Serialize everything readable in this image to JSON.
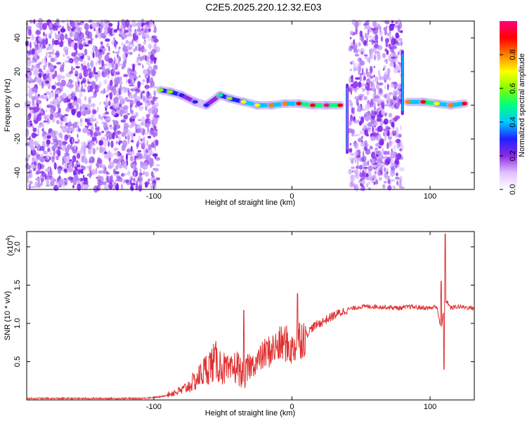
{
  "title": "C2E5.2025.220.12.32.E03",
  "chart_data": [
    {
      "type": "heatmap",
      "xlabel": "Height of straight line (km)",
      "ylabel": "Frequency (Hz)",
      "xlim": [
        -192,
        132
      ],
      "ylim": [
        -50,
        50
      ],
      "x_ticks": [
        "-100",
        "0",
        "100"
      ],
      "y_ticks": [
        "40",
        "20",
        "0",
        "-20",
        "-40"
      ],
      "colorbar": {
        "label": "Normalized spectral amplitude",
        "range": [
          0.0,
          1.0
        ],
        "ticks": [
          "0.0",
          "0.2",
          "0.4",
          "0.6",
          "0.8"
        ],
        "colormap": [
          "#ffffff",
          "#e0c0ff",
          "#8a2be2",
          "#2020ff",
          "#00c8ff",
          "#00ff80",
          "#80ff00",
          "#ffff00",
          "#ff8000",
          "#ff0000",
          "#ff0080"
        ]
      },
      "noise_regions": [
        {
          "x": [
            -192,
            -97
          ],
          "y": [
            -50,
            50
          ]
        },
        {
          "x": [
            42,
            80
          ],
          "y": [
            -50,
            50
          ]
        }
      ],
      "ridge": [
        {
          "x": -95,
          "y": 9,
          "amp": 0.55
        },
        {
          "x": -88,
          "y": 8,
          "amp": 0.6
        },
        {
          "x": -80,
          "y": 6,
          "amp": 0.3
        },
        {
          "x": -70,
          "y": 2,
          "amp": 0.25
        },
        {
          "x": -62,
          "y": 0,
          "amp": 0.3
        },
        {
          "x": -52,
          "y": 6,
          "amp": 0.5
        },
        {
          "x": -45,
          "y": 4,
          "amp": 0.6
        },
        {
          "x": -35,
          "y": 2,
          "amp": 0.65
        },
        {
          "x": -25,
          "y": 0,
          "amp": 0.7
        },
        {
          "x": -15,
          "y": 0,
          "amp": 0.75
        },
        {
          "x": -5,
          "y": 1,
          "amp": 0.8
        },
        {
          "x": 5,
          "y": 1,
          "amp": 0.85
        },
        {
          "x": 15,
          "y": 0,
          "amp": 0.9
        },
        {
          "x": 25,
          "y": 0,
          "amp": 0.95
        },
        {
          "x": 35,
          "y": 0,
          "amp": 0.9
        },
        {
          "x": 84,
          "y": 2,
          "amp": 0.8
        },
        {
          "x": 95,
          "y": 2,
          "amp": 0.85
        },
        {
          "x": 105,
          "y": 1,
          "amp": 0.7
        },
        {
          "x": 115,
          "y": 0,
          "amp": 0.75
        },
        {
          "x": 125,
          "y": 1,
          "amp": 0.85
        }
      ],
      "spikes": [
        {
          "x": 40,
          "y_min": -28,
          "y_max": 12
        },
        {
          "x": 80,
          "y_min": -5,
          "y_max": 32
        }
      ]
    },
    {
      "type": "line",
      "xlabel": "Height of straight line (km)",
      "ylabel": "SNR (10 * v/v)",
      "y_multiplier": "(x10^4)",
      "y_multiplier_base": "(x10",
      "y_multiplier_exp": "4",
      "xlim": [
        -192,
        132
      ],
      "ylim": [
        0.0,
        2.2
      ],
      "x_ticks": [
        "-100",
        "0",
        "100"
      ],
      "y_ticks": [
        "2.0",
        "1.5",
        "1.0",
        "0.5"
      ],
      "series": [
        {
          "color": "#e03030",
          "x": [
            -192,
            -150,
            -110,
            -95,
            -85,
            -80,
            -75,
            -70,
            -65,
            -60,
            -55,
            -50,
            -45,
            -40,
            -35,
            -30,
            -25,
            -20,
            -15,
            -10,
            -5,
            0,
            5,
            10,
            15,
            20,
            30,
            40,
            50,
            60,
            70,
            80,
            85,
            90,
            100,
            105,
            108,
            110,
            112,
            115,
            120,
            132
          ],
          "values": [
            0.02,
            0.02,
            0.02,
            0.04,
            0.1,
            0.12,
            0.18,
            0.25,
            0.35,
            0.45,
            0.5,
            0.42,
            0.35,
            0.45,
            0.3,
            0.45,
            0.5,
            0.6,
            0.65,
            0.7,
            0.75,
            0.65,
            0.8,
            0.85,
            0.95,
            1.0,
            1.1,
            1.18,
            1.22,
            1.22,
            1.21,
            1.2,
            1.22,
            1.21,
            1.2,
            1.22,
            0.9,
            1.2,
            1.3,
            1.2,
            1.22,
            1.2
          ]
        }
      ],
      "peaks": [
        {
          "x": -35,
          "y": 1.17
        },
        {
          "x": 4,
          "y": 1.39
        },
        {
          "x": 108,
          "y": 1.55
        },
        {
          "x": 111,
          "y": 2.17
        },
        {
          "x": 110,
          "y": 0.4
        }
      ]
    }
  ]
}
